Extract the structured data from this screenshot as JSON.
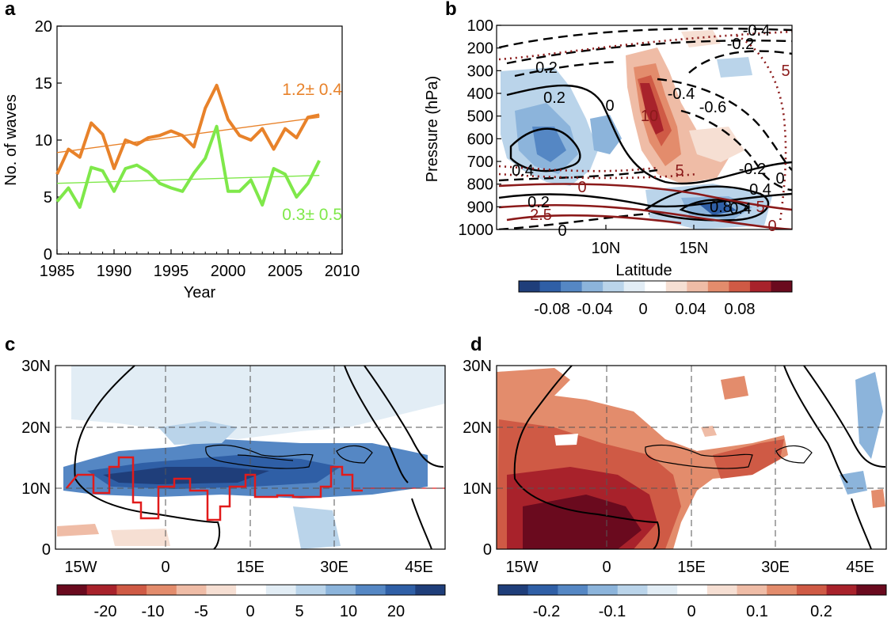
{
  "panels": {
    "a": "a",
    "b": "b",
    "c": "c",
    "d": "d"
  },
  "colors": {
    "orange": "#e8822a",
    "green": "#7fe84a",
    "dark_red": "#8b1a1a",
    "map_red": "#e11b1b"
  },
  "chart_data": [
    {
      "panel": "a",
      "type": "line",
      "xlabel": "Year",
      "ylabel": "No. of waves",
      "xlim": [
        1985,
        2010
      ],
      "ylim": [
        0,
        20
      ],
      "xticks": [
        "1985",
        "1990",
        "1995",
        "2000",
        "2005",
        "2010"
      ],
      "yticks": [
        "0",
        "5",
        "10",
        "15",
        "20"
      ],
      "x": [
        1985,
        1986,
        1987,
        1988,
        1989,
        1990,
        1991,
        1992,
        1993,
        1994,
        1995,
        1996,
        1997,
        1998,
        1999,
        2000,
        2001,
        2002,
        2003,
        2004,
        2005,
        2006,
        2007,
        2008
      ],
      "series": [
        {
          "color": "#e8822a",
          "values": [
            7.0,
            9.2,
            8.5,
            11.5,
            10.5,
            7.5,
            10.0,
            9.6,
            10.2,
            10.4,
            10.8,
            10.4,
            9.4,
            12.8,
            14.8,
            11.8,
            10.4,
            10.0,
            11.0,
            9.2,
            11.0,
            10.2,
            12.0,
            12.2
          ],
          "trend": [
            8.9,
            12.0
          ],
          "annotation": "1.2± 0.4"
        },
        {
          "color": "#7fe84a",
          "values": [
            4.6,
            5.8,
            4.1,
            7.6,
            7.3,
            5.5,
            7.5,
            7.8,
            7.2,
            6.2,
            5.8,
            5.5,
            7.1,
            8.4,
            11.2,
            5.5,
            5.5,
            6.5,
            4.3,
            7.5,
            7.0,
            5.0,
            6.2,
            8.2
          ],
          "trend": [
            6.2,
            6.9
          ],
          "annotation": "0.3± 0.5"
        }
      ]
    },
    {
      "panel": "b",
      "type": "heatmap",
      "xlabel": "Latitude",
      "ylabel": "Pressure (hPa)",
      "xticks": [
        "10N",
        "15N"
      ],
      "yticks": [
        "100",
        "200",
        "300",
        "400",
        "500",
        "600",
        "700",
        "800",
        "900",
        "1000"
      ],
      "contour_labels_black": [
        "-0.4",
        "-0.2",
        "0.2",
        "0.2",
        "0",
        "-0.4",
        "-0.6",
        "-0.2",
        "0",
        "0.4",
        "0.2",
        "0.4",
        "0.8",
        "0.4",
        "0"
      ],
      "contour_labels_red": [
        "5",
        "10",
        "5",
        "0",
        "2.5",
        "5",
        "0"
      ],
      "colorbar_ticks": [
        "-0.08",
        "-0.04",
        "0",
        "0.04",
        "0.08"
      ],
      "colorbar_colors": [
        "#1f3e7a",
        "#2f5fa6",
        "#5587c4",
        "#8cb4db",
        "#bad4ea",
        "#e2edf5",
        "#ffffff",
        "#f6dfd3",
        "#efbca6",
        "#e38c6c",
        "#cf5a45",
        "#a8222b",
        "#6a0a1e"
      ]
    },
    {
      "panel": "c",
      "type": "heatmap",
      "xticks": [
        "15W",
        "0",
        "15E",
        "30E",
        "45E"
      ],
      "yticks": [
        "0",
        "10N",
        "20N",
        "30N"
      ],
      "colorbar_ticks": [
        "-20",
        "-10",
        "-5",
        "0",
        "5",
        "10",
        "20"
      ],
      "colorbar_colors": [
        "#6a0a1e",
        "#a8222b",
        "#cf5a45",
        "#e38c6c",
        "#efbca6",
        "#f6dfd3",
        "#ffffff",
        "#e2edf5",
        "#bad4ea",
        "#8cb4db",
        "#5587c4",
        "#2f5fa6",
        "#1f3e7a"
      ]
    },
    {
      "panel": "d",
      "type": "heatmap",
      "xticks": [
        "15W",
        "0",
        "15E",
        "30E",
        "45E"
      ],
      "yticks": [
        "0",
        "10N",
        "20N",
        "30N"
      ],
      "colorbar_ticks": [
        "-0.2",
        "-0.1",
        "0",
        "0.1",
        "0.2"
      ],
      "colorbar_colors": [
        "#1f3e7a",
        "#2f5fa6",
        "#5587c4",
        "#8cb4db",
        "#bad4ea",
        "#e2edf5",
        "#ffffff",
        "#f6dfd3",
        "#efbca6",
        "#e38c6c",
        "#cf5a45",
        "#a8222b",
        "#6a0a1e"
      ]
    }
  ]
}
